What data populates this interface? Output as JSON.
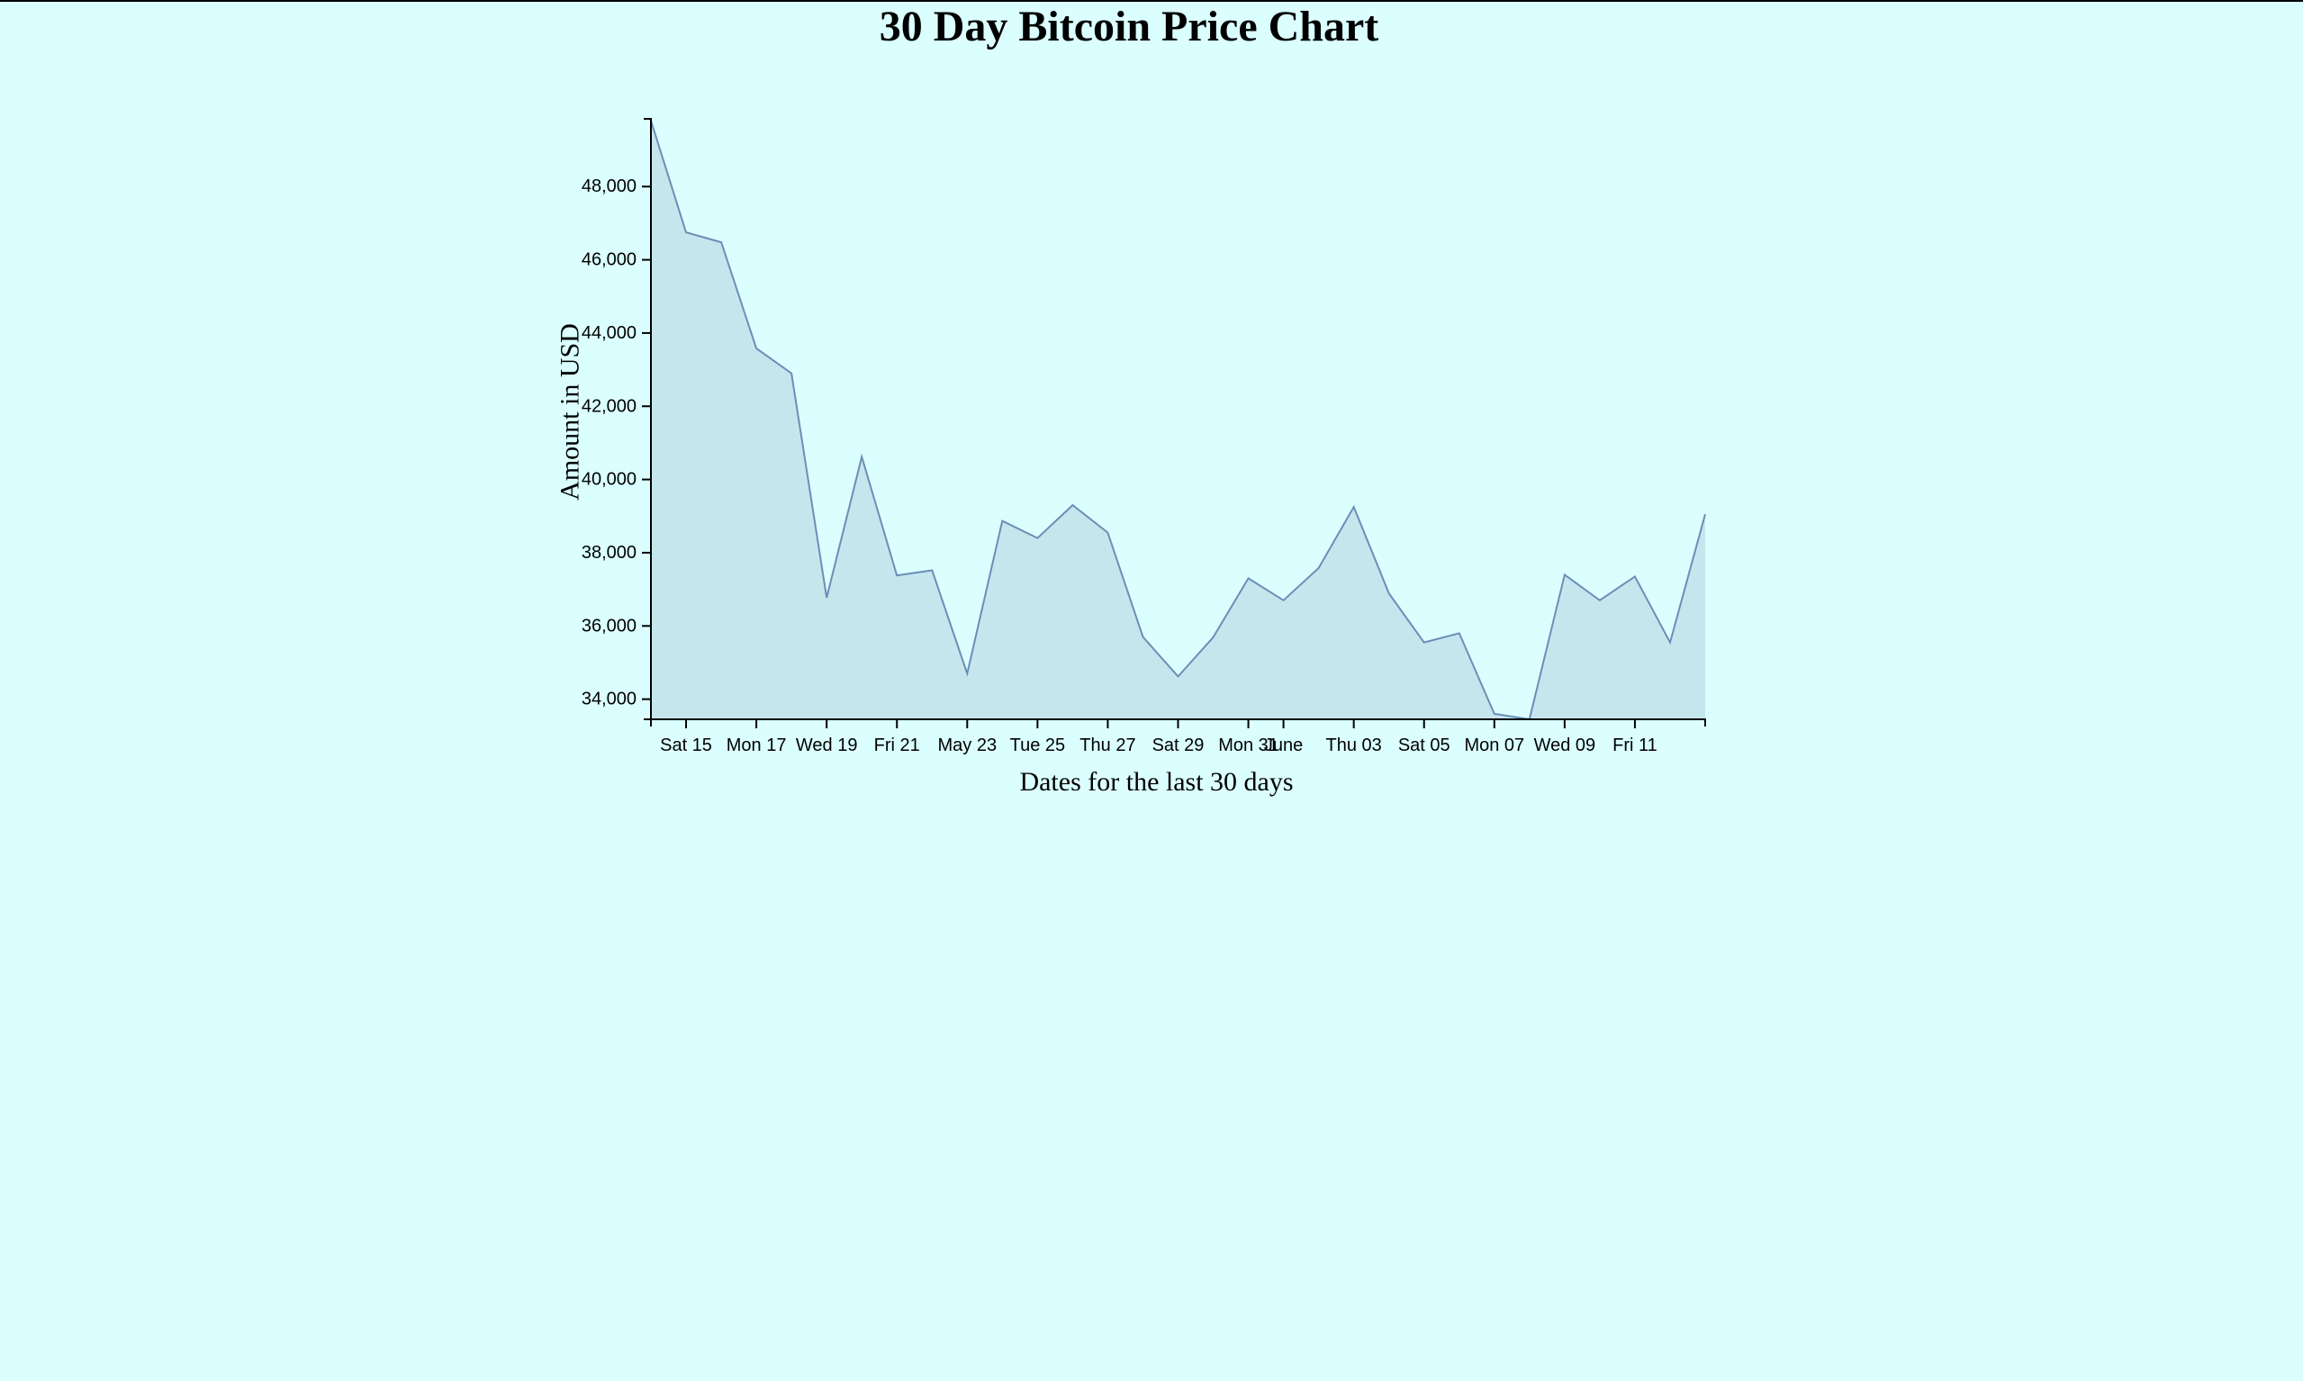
{
  "page": {
    "title": "30 Day Bitcoin Price Chart"
  },
  "colors": {
    "background": "#dbffff",
    "area_fill": "#c6e6ee",
    "line": "#6a8fb6",
    "axis": "#000000"
  },
  "chart_data": {
    "type": "area",
    "title": "30 Day Bitcoin Price Chart",
    "xlabel": "Dates for the last 30 days",
    "ylabel": "Amount in USD",
    "x": [
      "2021-05-14",
      "2021-05-15",
      "2021-05-16",
      "2021-05-17",
      "2021-05-18",
      "2021-05-19",
      "2021-05-20",
      "2021-05-21",
      "2021-05-22",
      "2021-05-23",
      "2021-05-24",
      "2021-05-25",
      "2021-05-26",
      "2021-05-27",
      "2021-05-28",
      "2021-05-29",
      "2021-05-30",
      "2021-05-31",
      "2021-06-01",
      "2021-06-02",
      "2021-06-03",
      "2021-06-04",
      "2021-06-05",
      "2021-06-06",
      "2021-06-07",
      "2021-06-08",
      "2021-06-09",
      "2021-06-10",
      "2021-06-11",
      "2021-06-12",
      "2021-06-13"
    ],
    "values": [
      49800,
      46750,
      46480,
      43580,
      42900,
      36770,
      40620,
      37380,
      37520,
      34700,
      38870,
      38400,
      39300,
      38550,
      35700,
      34620,
      35690,
      37300,
      36700,
      37580,
      39250,
      36890,
      35550,
      35800,
      33600,
      33450,
      37400,
      36700,
      37350,
      35550,
      39050
    ],
    "x_ticks": [
      {
        "date": "2021-05-15",
        "label": "Sat 15"
      },
      {
        "date": "2021-05-17",
        "label": "Mon 17"
      },
      {
        "date": "2021-05-19",
        "label": "Wed 19"
      },
      {
        "date": "2021-05-21",
        "label": "Fri 21"
      },
      {
        "date": "2021-05-23",
        "label": "May 23"
      },
      {
        "date": "2021-05-25",
        "label": "Tue 25"
      },
      {
        "date": "2021-05-27",
        "label": "Thu 27"
      },
      {
        "date": "2021-05-29",
        "label": "Sat 29"
      },
      {
        "date": "2021-05-31",
        "label": "Mon 31"
      },
      {
        "date": "2021-06-01",
        "label": "June"
      },
      {
        "date": "2021-06-03",
        "label": "Thu 03"
      },
      {
        "date": "2021-06-05",
        "label": "Sat 05"
      },
      {
        "date": "2021-06-07",
        "label": "Mon 07"
      },
      {
        "date": "2021-06-09",
        "label": "Wed 09"
      },
      {
        "date": "2021-06-11",
        "label": "Fri 11"
      }
    ],
    "y_ticks": [
      {
        "value": 34000,
        "label": "34,000"
      },
      {
        "value": 36000,
        "label": "36,000"
      },
      {
        "value": 38000,
        "label": "38,000"
      },
      {
        "value": 40000,
        "label": "40,000"
      },
      {
        "value": 42000,
        "label": "42,000"
      },
      {
        "value": 44000,
        "label": "44,000"
      },
      {
        "value": 46000,
        "label": "46,000"
      },
      {
        "value": 48000,
        "label": "48,000"
      }
    ],
    "xlim": [
      "2021-05-14",
      "2021-06-13"
    ],
    "ylim": [
      33450,
      49850
    ],
    "grid": false,
    "legend": "none"
  }
}
